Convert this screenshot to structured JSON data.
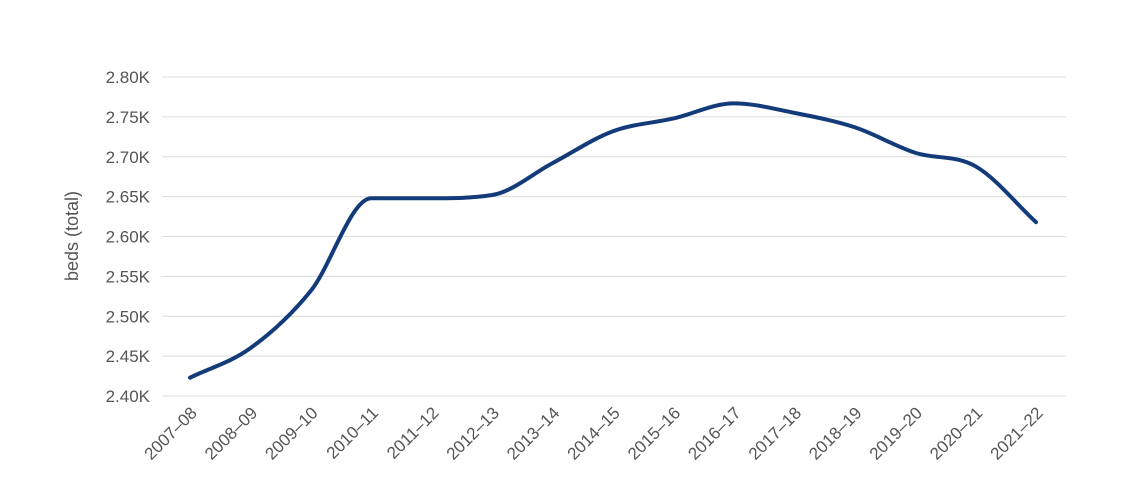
{
  "chart_data": {
    "type": "line",
    "ylabel": "beds (total)",
    "xlabel": "",
    "categories": [
      "2007–08",
      "2008–09",
      "2009–10",
      "2010–11",
      "2011–12",
      "2012–13",
      "2013–14",
      "2014–15",
      "2015–16",
      "2016–17",
      "2017–18",
      "2018–19",
      "2019–20",
      "2020–21",
      "2021–22"
    ],
    "series": [
      {
        "values": [
          2423,
          2460,
          2532,
          2648,
          2648,
          2652,
          2692,
          2732,
          2748,
          2767,
          2755,
          2737,
          2705,
          2688,
          2618
        ]
      }
    ],
    "ylim": [
      2400,
      2800
    ],
    "yticks": [
      2400,
      2450,
      2500,
      2550,
      2600,
      2650,
      2700,
      2750,
      2800
    ],
    "ytick_labels": [
      "2.40K",
      "2.45K",
      "2.50K",
      "2.55K",
      "2.60K",
      "2.65K",
      "2.70K",
      "2.75K",
      "2.80K"
    ],
    "grid": true,
    "legend": "none",
    "line_color": "#133b7a",
    "grid_color": "#dcdcdc",
    "text_color": "#555555"
  }
}
